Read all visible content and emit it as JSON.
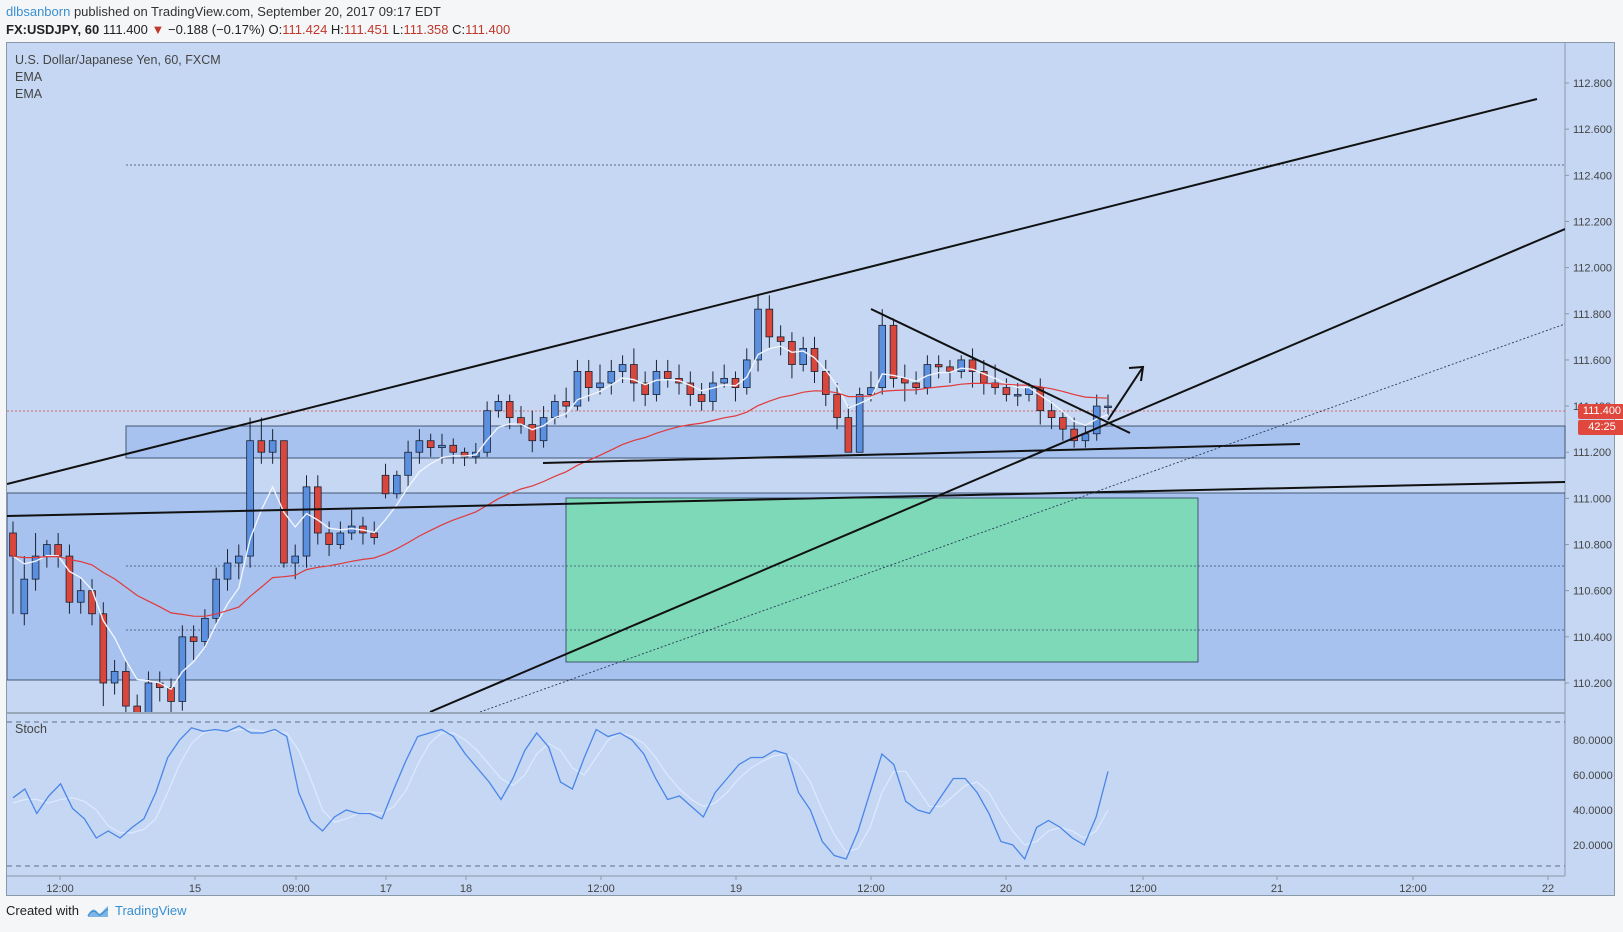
{
  "header": {
    "author": "dlbsanborn",
    "published": "published on TradingView.com, September 20, 2017 09:17 EDT"
  },
  "symbol_line": {
    "symbol": "FX:USDJPY, 60",
    "last": "111.400",
    "change": "−0.188 (−0.17%)",
    "o_label": "O:",
    "o": "111.424",
    "h_label": "H:",
    "h": "111.451",
    "l_label": "L:",
    "l": "111.358",
    "c_label": "C:",
    "c": "111.400"
  },
  "legend": {
    "title": "U.S. Dollar/Japanese Yen, 60, FXCM",
    "ema1": "EMA",
    "ema2": "EMA",
    "stoch": "Stoch"
  },
  "price_tag": {
    "price": "111.400",
    "timer": "42:25"
  },
  "footer": {
    "created_with": "Created with",
    "brand": "TradingView"
  },
  "colors": {
    "bull": "#5b8fe0",
    "bear": "#d9463b",
    "ema_fast": "#f0f4ff",
    "ema_slow": "#e03a3a",
    "stoch_k": "#4a86e8",
    "stoch_d": "#dce8ff",
    "zone_green": "#7ed9b8",
    "panel_bg": "#c5d7f3",
    "zone_blue": "#a7c2ef"
  },
  "chart_data": {
    "type": "candlestick",
    "symbol": "USDJPY",
    "timeframe": "60",
    "y_axis_labels": [
      "112.800",
      "112.600",
      "112.400",
      "112.200",
      "112.000",
      "111.800",
      "111.600",
      "111.400",
      "111.200",
      "111.000",
      "110.800",
      "110.600",
      "110.400",
      "110.200"
    ],
    "x_axis_labels": [
      "12:00",
      "15",
      "09:00",
      "17",
      "18",
      "12:00",
      "19",
      "12:00",
      "20",
      "12:00",
      "21",
      "12:00",
      "22"
    ],
    "stoch_axis_labels": [
      "80.0000",
      "60.0000",
      "40.0000",
      "20.0000"
    ],
    "ylim": [
      110.07,
      112.93
    ],
    "candles": [
      [
        110.85,
        110.75,
        110.9,
        110.5
      ],
      [
        110.5,
        110.65,
        110.75,
        110.45
      ],
      [
        110.65,
        110.75,
        110.85,
        110.6
      ],
      [
        110.75,
        110.8,
        110.82,
        110.7
      ],
      [
        110.8,
        110.75,
        110.85,
        110.7
      ],
      [
        110.75,
        110.55,
        110.8,
        110.5
      ],
      [
        110.55,
        110.6,
        110.65,
        110.5
      ],
      [
        110.6,
        110.5,
        110.65,
        110.45
      ],
      [
        110.5,
        110.2,
        110.55,
        110.1
      ],
      [
        110.2,
        110.25,
        110.3,
        110.15
      ],
      [
        110.25,
        110.1,
        110.3,
        110.05
      ],
      [
        110.1,
        110.05,
        110.15,
        110.0
      ],
      [
        110.05,
        110.2,
        110.25,
        110.0
      ],
      [
        110.2,
        110.18,
        110.25,
        110.12
      ],
      [
        110.18,
        110.12,
        110.22,
        110.05
      ],
      [
        110.12,
        110.4,
        110.45,
        110.08
      ],
      [
        110.4,
        110.38,
        110.45,
        110.3
      ],
      [
        110.38,
        110.48,
        110.52,
        110.35
      ],
      [
        110.48,
        110.65,
        110.7,
        110.45
      ],
      [
        110.65,
        110.72,
        110.78,
        110.6
      ],
      [
        110.72,
        110.75,
        110.8,
        110.65
      ],
      [
        110.75,
        111.25,
        111.35,
        110.7
      ],
      [
        111.25,
        111.2,
        111.35,
        111.15
      ],
      [
        111.2,
        111.25,
        111.3,
        111.15
      ],
      [
        111.25,
        110.72,
        111.25,
        110.7
      ],
      [
        110.72,
        110.75,
        110.8,
        110.65
      ],
      [
        110.75,
        111.05,
        111.1,
        110.7
      ],
      [
        111.05,
        110.85,
        111.1,
        110.8
      ],
      [
        110.85,
        110.8,
        110.9,
        110.75
      ],
      [
        110.8,
        110.85,
        110.9,
        110.78
      ],
      [
        110.85,
        110.88,
        110.95,
        110.82
      ],
      [
        110.88,
        110.85,
        110.92,
        110.8
      ],
      [
        110.85,
        110.83,
        110.9,
        110.8
      ],
      [
        111.1,
        111.02,
        111.15,
        111.0
      ],
      [
        111.02,
        111.1,
        111.12,
        111.0
      ],
      [
        111.1,
        111.2,
        111.25,
        111.05
      ],
      [
        111.2,
        111.25,
        111.3,
        111.15
      ],
      [
        111.25,
        111.22,
        111.28,
        111.18
      ],
      [
        111.22,
        111.23,
        111.28,
        111.15
      ],
      [
        111.23,
        111.2,
        111.26,
        111.15
      ],
      [
        111.2,
        111.18,
        111.22,
        111.14
      ],
      [
        111.18,
        111.2,
        111.24,
        111.15
      ],
      [
        111.2,
        111.38,
        111.42,
        111.18
      ],
      [
        111.38,
        111.42,
        111.45,
        111.35
      ],
      [
        111.42,
        111.35,
        111.45,
        111.3
      ],
      [
        111.35,
        111.32,
        111.4,
        111.28
      ],
      [
        111.32,
        111.25,
        111.38,
        111.2
      ],
      [
        111.25,
        111.35,
        111.4,
        111.22
      ],
      [
        111.35,
        111.42,
        111.45,
        111.32
      ],
      [
        111.42,
        111.4,
        111.48,
        111.35
      ],
      [
        111.4,
        111.55,
        111.6,
        111.38
      ],
      [
        111.55,
        111.48,
        111.6,
        111.42
      ],
      [
        111.48,
        111.5,
        111.58,
        111.45
      ],
      [
        111.5,
        111.55,
        111.6,
        111.45
      ],
      [
        111.55,
        111.58,
        111.62,
        111.5
      ],
      [
        111.58,
        111.5,
        111.65,
        111.42
      ],
      [
        111.5,
        111.45,
        111.55,
        111.4
      ],
      [
        111.45,
        111.55,
        111.6,
        111.42
      ],
      [
        111.55,
        111.52,
        111.6,
        111.48
      ],
      [
        111.52,
        111.5,
        111.58,
        111.45
      ],
      [
        111.5,
        111.45,
        111.55,
        111.4
      ],
      [
        111.45,
        111.42,
        111.5,
        111.38
      ],
      [
        111.42,
        111.5,
        111.55,
        111.38
      ],
      [
        111.5,
        111.52,
        111.58,
        111.48
      ],
      [
        111.52,
        111.48,
        111.55,
        111.42
      ],
      [
        111.48,
        111.6,
        111.65,
        111.45
      ],
      [
        111.6,
        111.82,
        111.88,
        111.55
      ],
      [
        111.82,
        111.7,
        111.88,
        111.65
      ],
      [
        111.7,
        111.68,
        111.75,
        111.62
      ],
      [
        111.68,
        111.58,
        111.72,
        111.52
      ],
      [
        111.58,
        111.65,
        111.7,
        111.55
      ],
      [
        111.65,
        111.55,
        111.7,
        111.5
      ],
      [
        111.55,
        111.45,
        111.6,
        111.4
      ],
      [
        111.45,
        111.35,
        111.5,
        111.3
      ],
      [
        111.35,
        111.2,
        111.4,
        111.2
      ],
      [
        111.2,
        111.45,
        111.48,
        111.2
      ],
      [
        111.45,
        111.48,
        111.55,
        111.42
      ],
      [
        111.48,
        111.75,
        111.82,
        111.45
      ],
      [
        111.75,
        111.52,
        111.78,
        111.48
      ],
      [
        111.52,
        111.5,
        111.58,
        111.42
      ],
      [
        111.5,
        111.48,
        111.55,
        111.45
      ],
      [
        111.48,
        111.58,
        111.62,
        111.45
      ],
      [
        111.58,
        111.57,
        111.62,
        111.52
      ],
      [
        111.57,
        111.55,
        111.6,
        111.5
      ],
      [
        111.55,
        111.6,
        111.62,
        111.52
      ],
      [
        111.6,
        111.55,
        111.65,
        111.48
      ],
      [
        111.55,
        111.5,
        111.6,
        111.45
      ],
      [
        111.5,
        111.48,
        111.58,
        111.45
      ],
      [
        111.48,
        111.45,
        111.52,
        111.42
      ],
      [
        111.45,
        111.45,
        111.5,
        111.4
      ],
      [
        111.45,
        111.48,
        111.5,
        111.42
      ],
      [
        111.48,
        111.38,
        111.52,
        111.32
      ],
      [
        111.38,
        111.35,
        111.42,
        111.3
      ],
      [
        111.35,
        111.3,
        111.38,
        111.25
      ],
      [
        111.3,
        111.25,
        111.35,
        111.22
      ],
      [
        111.25,
        111.28,
        111.32,
        111.22
      ],
      [
        111.28,
        111.4,
        111.45,
        111.25
      ],
      [
        111.4,
        111.4,
        111.45,
        111.36
      ]
    ],
    "stoch_k": [
      47,
      52,
      38,
      48,
      55,
      41,
      35,
      24,
      28,
      24,
      30,
      35,
      50,
      70,
      80,
      87,
      85,
      86,
      85,
      88,
      84,
      84,
      86,
      82,
      50,
      34,
      28,
      36,
      40,
      38,
      38,
      35,
      52,
      68,
      82,
      84,
      86,
      82,
      72,
      64,
      56,
      46,
      58,
      74,
      84,
      76,
      56,
      52,
      70,
      86,
      82,
      84,
      80,
      72,
      58,
      46,
      48,
      42,
      36,
      50,
      58,
      66,
      70,
      70,
      74,
      72,
      50,
      40,
      22,
      14,
      12,
      28,
      50,
      72,
      66,
      45,
      40,
      38,
      48,
      58,
      58,
      50,
      38,
      22,
      20,
      12,
      30,
      34,
      30,
      24,
      20,
      36,
      62
    ],
    "stoch_d": [
      44,
      46,
      46,
      44,
      46,
      47,
      45,
      40,
      31,
      27,
      27,
      29,
      35,
      50,
      66,
      78,
      84,
      86,
      85,
      86,
      86,
      85,
      85,
      84,
      74,
      58,
      40,
      33,
      35,
      38,
      39,
      38,
      42,
      51,
      66,
      78,
      84,
      84,
      80,
      74,
      66,
      58,
      54,
      60,
      72,
      78,
      74,
      64,
      60,
      70,
      80,
      84,
      82,
      78,
      70,
      60,
      52,
      46,
      42,
      44,
      50,
      58,
      64,
      68,
      71,
      72,
      66,
      56,
      40,
      26,
      16,
      18,
      30,
      50,
      62,
      62,
      52,
      42,
      42,
      48,
      54,
      56,
      50,
      38,
      28,
      20,
      22,
      28,
      30,
      28,
      24,
      28,
      40
    ]
  }
}
